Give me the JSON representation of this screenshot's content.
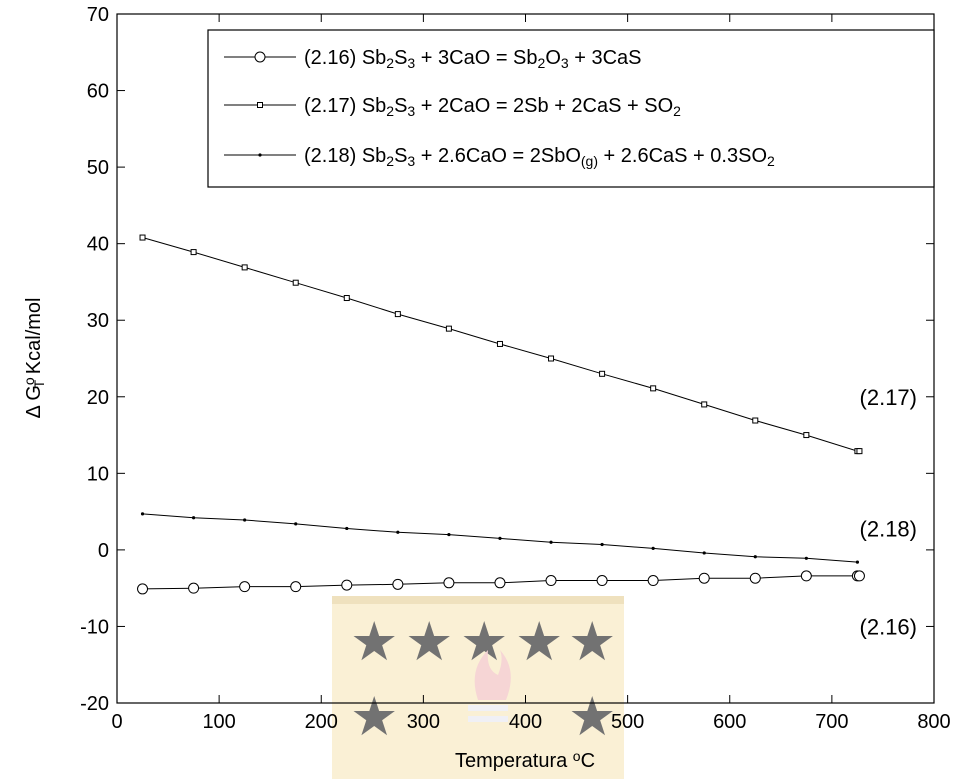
{
  "chart_data": {
    "type": "line",
    "title": "",
    "xlabel": {
      "main": "Temperatura ",
      "sup": "o",
      "tail": "C"
    },
    "ylabel": {
      "prefix": "Δ G",
      "sup": "o",
      "sub": "T",
      "tail": " Kcal/mol"
    },
    "xlim": [
      0,
      800
    ],
    "ylim": [
      -20,
      70
    ],
    "xticks": [
      0,
      100,
      200,
      300,
      400,
      500,
      600,
      700,
      800
    ],
    "yticks": [
      -20,
      -10,
      0,
      10,
      20,
      30,
      40,
      50,
      60,
      70
    ],
    "grid": false,
    "legend_position": "top-right",
    "series": [
      {
        "name": "(2.16) Sb2S3 + 3CaO = Sb2O3 + 3CaS",
        "marker": "circle",
        "end_label": "(2.16)",
        "x": [
          25,
          75,
          125,
          175,
          225,
          275,
          325,
          375,
          425,
          475,
          525,
          575,
          625,
          675,
          725,
          727
        ],
        "y": [
          -5.1,
          -5.0,
          -4.8,
          -4.8,
          -4.6,
          -4.5,
          -4.3,
          -4.3,
          -4.0,
          -4.0,
          -4.0,
          -3.7,
          -3.7,
          -3.4,
          -3.4,
          -3.4
        ]
      },
      {
        "name": "(2.17) Sb2S3 + 2CaO = 2Sb + 2CaS + SO2",
        "marker": "square",
        "end_label": "(2.17)",
        "x": [
          25,
          75,
          125,
          175,
          225,
          275,
          325,
          375,
          425,
          475,
          525,
          575,
          625,
          675,
          725,
          727
        ],
        "y": [
          40.8,
          38.9,
          36.9,
          34.9,
          32.9,
          30.8,
          28.9,
          26.9,
          25.0,
          23.0,
          21.1,
          19.0,
          16.9,
          15.0,
          12.9,
          12.9
        ]
      },
      {
        "name": "(2.18) Sb2S3 + 2.6CaO = 2SbO(g) + 2.6CaS + 0.3SO2",
        "marker": "point",
        "end_label": "(2.18)",
        "x": [
          25,
          75,
          125,
          175,
          225,
          275,
          325,
          375,
          425,
          475,
          525,
          575,
          625,
          675,
          725
        ],
        "y": [
          4.7,
          4.2,
          3.9,
          3.4,
          2.8,
          2.3,
          2.0,
          1.5,
          1.0,
          0.7,
          0.2,
          -0.4,
          -0.9,
          -1.1,
          -1.6
        ]
      }
    ],
    "legend": [
      {
        "number": "(2.16)",
        "parts": [
          [
            "Sb",
            ""
          ],
          [
            "2",
            "sub"
          ],
          [
            "S",
            ""
          ],
          [
            "3",
            "sub"
          ],
          [
            " + 3CaO = Sb",
            ""
          ],
          [
            "2",
            "sub"
          ],
          [
            "O",
            ""
          ],
          [
            "3",
            "sub"
          ],
          [
            " + 3CaS",
            ""
          ]
        ]
      },
      {
        "number": "(2.17)",
        "parts": [
          [
            "Sb",
            ""
          ],
          [
            "2",
            "sub"
          ],
          [
            "S",
            ""
          ],
          [
            "3",
            "sub"
          ],
          [
            " + 2CaO = 2Sb + 2CaS + SO",
            ""
          ],
          [
            "2",
            "sub"
          ]
        ]
      },
      {
        "number": "(2.18)",
        "parts": [
          [
            "Sb",
            ""
          ],
          [
            "2",
            "sub"
          ],
          [
            "S",
            ""
          ],
          [
            "3",
            "sub"
          ],
          [
            " + 2.6CaO = 2SbO",
            ""
          ],
          [
            "(g)",
            "sub"
          ],
          [
            " + 2.6CaS + 0.3SO",
            ""
          ],
          [
            "2",
            "sub"
          ]
        ]
      }
    ],
    "colors": {
      "line": "#000000",
      "background": "#ffffff"
    }
  }
}
